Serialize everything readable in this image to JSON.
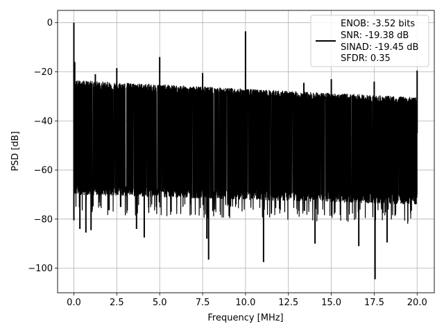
{
  "chart_data": {
    "type": "line",
    "xlabel": "Frequency [MHz]",
    "ylabel": "PSD [dB]",
    "xlim": [
      -0.95,
      21.0
    ],
    "ylim": [
      -110,
      5
    ],
    "xticks": [
      0.0,
      2.5,
      5.0,
      7.5,
      10.0,
      12.5,
      15.0,
      17.5,
      20.0
    ],
    "xtick_labels": [
      "0.0",
      "2.5",
      "5.0",
      "7.5",
      "10.0",
      "12.5",
      "15.0",
      "17.5",
      "20.0"
    ],
    "yticks": [
      0,
      -20,
      -40,
      -60,
      -80,
      -100
    ],
    "ytick_labels": [
      "0",
      "−20",
      "−40",
      "−60",
      "−80",
      "−100"
    ],
    "grid": true,
    "legend_position": "upper-right",
    "legend_lines": [
      "ENOB: -3.52 bits",
      "SNR: -19.38 dB",
      "SINAD: -19.45 dB",
      "SFDR: 0.35"
    ],
    "series": [
      {
        "color": "#000000",
        "x_range": [
          0.0,
          20.0
        ],
        "noise_floor_db": -45,
        "noise_upper_db": [
          -25,
          -32
        ],
        "noise_lower_db": [
          -68,
          -72
        ],
        "spurs": [
          {
            "x": 0.0,
            "y": 0.0
          },
          {
            "x": 0.05,
            "y": -16
          },
          {
            "x": 1.25,
            "y": -21
          },
          {
            "x": 2.5,
            "y": -18.5
          },
          {
            "x": 5.0,
            "y": -14
          },
          {
            "x": 7.5,
            "y": -20.5
          },
          {
            "x": 10.0,
            "y": -3.5
          },
          {
            "x": 13.4,
            "y": -24.5
          },
          {
            "x": 15.0,
            "y": -23
          },
          {
            "x": 17.5,
            "y": -24
          },
          {
            "x": 20.0,
            "y": -19.5
          }
        ],
        "dips": [
          {
            "x": 0.0,
            "y": -80.5
          },
          {
            "x": 0.35,
            "y": -84
          },
          {
            "x": 0.7,
            "y": -85.5
          },
          {
            "x": 1.0,
            "y": -84.5
          },
          {
            "x": 3.65,
            "y": -84
          },
          {
            "x": 4.1,
            "y": -87.5
          },
          {
            "x": 7.75,
            "y": -88
          },
          {
            "x": 7.85,
            "y": -96.5
          },
          {
            "x": 11.05,
            "y": -97.5
          },
          {
            "x": 14.05,
            "y": -90
          },
          {
            "x": 16.6,
            "y": -91
          },
          {
            "x": 17.55,
            "y": -104.5
          },
          {
            "x": 18.25,
            "y": -89.5
          }
        ]
      }
    ]
  }
}
